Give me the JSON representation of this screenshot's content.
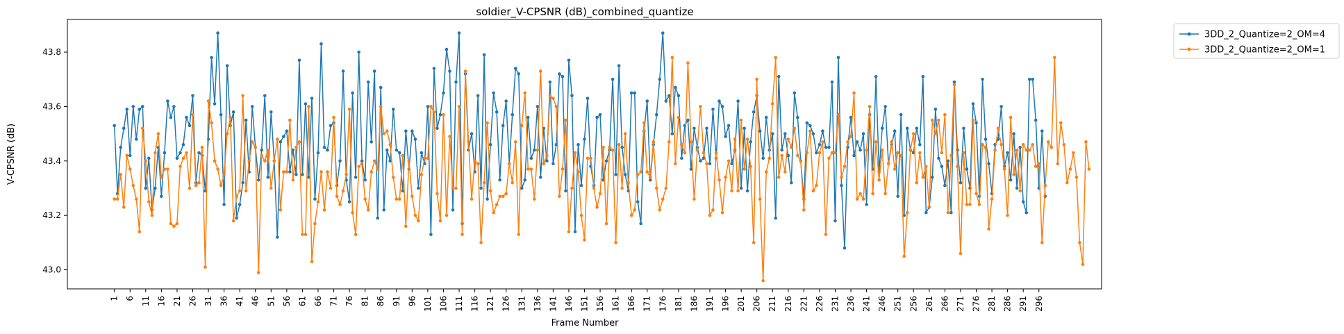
{
  "chart_data": {
    "type": "line",
    "title": "soldier_V-CPSNR (dB)_combined_quantize",
    "xlabel": "Frame Number",
    "ylabel": "V-CPSNR (dB)",
    "xlim": [
      -14,
      316
    ],
    "ylim": [
      42.93,
      43.92
    ],
    "x_start": 1,
    "x_end": 300,
    "x_ticks": [
      1,
      6,
      11,
      16,
      21,
      26,
      31,
      36,
      41,
      46,
      51,
      56,
      61,
      66,
      71,
      76,
      81,
      86,
      91,
      96,
      101,
      106,
      111,
      116,
      121,
      126,
      131,
      136,
      141,
      146,
      151,
      156,
      161,
      166,
      171,
      176,
      181,
      186,
      191,
      196,
      201,
      206,
      211,
      216,
      221,
      226,
      231,
      236,
      241,
      246,
      251,
      256,
      261,
      266,
      271,
      276,
      281,
      286,
      291,
      296
    ],
    "y_ticks": [
      43.0,
      43.2,
      43.4,
      43.6,
      43.8
    ],
    "legend": {
      "placement": "outside-top-right"
    },
    "series": [
      {
        "name": "3DD_2_Quantize=2_OM=4",
        "color": "#1f77b4",
        "values": [
          43.53,
          43.28,
          43.45,
          43.52,
          43.59,
          43.42,
          43.6,
          43.48,
          43.59,
          43.6,
          43.3,
          43.41,
          43.22,
          43.3,
          43.45,
          43.27,
          43.43,
          43.62,
          43.56,
          43.6,
          43.41,
          43.43,
          43.46,
          43.56,
          43.53,
          43.64,
          43.32,
          43.43,
          43.42,
          43.29,
          43.48,
          43.78,
          43.61,
          43.87,
          43.57,
          43.24,
          43.75,
          43.53,
          43.58,
          43.19,
          43.24,
          43.32,
          43.55,
          43.36,
          43.6,
          43.45,
          43.33,
          43.44,
          43.64,
          43.34,
          43.58,
          43.4,
          43.12,
          43.47,
          43.49,
          43.51,
          43.36,
          43.44,
          43.35,
          43.77,
          43.35,
          43.61,
          43.34,
          43.63,
          43.26,
          43.43,
          43.83,
          43.45,
          43.44,
          43.53,
          43.54,
          43.31,
          43.4,
          43.73,
          43.33,
          43.25,
          43.65,
          43.34,
          43.8,
          43.4,
          43.33,
          43.69,
          43.47,
          43.73,
          43.19,
          43.67,
          43.22,
          43.44,
          43.4,
          43.59,
          43.44,
          43.43,
          43.29,
          43.51,
          43.37,
          43.51,
          43.48,
          43.3,
          43.43,
          43.39,
          43.6,
          43.13,
          43.74,
          43.52,
          43.57,
          43.65,
          43.81,
          43.73,
          43.22,
          43.69,
          43.87,
          43.17,
          43.72,
          43.44,
          43.5,
          43.36,
          43.64,
          43.3,
          43.79,
          43.26,
          43.46,
          43.65,
          43.58,
          43.33,
          43.53,
          43.62,
          43.39,
          43.57,
          43.74,
          43.72,
          43.3,
          43.33,
          43.56,
          43.41,
          43.44,
          43.6,
          43.34,
          43.52,
          43.4,
          43.69,
          43.39,
          43.46,
          43.72,
          43.71,
          43.29,
          43.77,
          43.64,
          43.14,
          43.46,
          43.31,
          43.48,
          43.63,
          43.38,
          43.31,
          43.56,
          43.57,
          43.33,
          43.4,
          43.44,
          43.7,
          43.35,
          43.75,
          43.45,
          43.35,
          43.29,
          43.65,
          43.65,
          43.25,
          43.17,
          43.51,
          43.62,
          43.33,
          43.46,
          43.57,
          43.7,
          43.87,
          43.62,
          43.64,
          43.5,
          43.67,
          43.64,
          43.41,
          43.53,
          43.55,
          43.37,
          43.52,
          43.45,
          43.4,
          43.41,
          43.52,
          43.39,
          43.59,
          43.41,
          43.62,
          43.6,
          43.49,
          43.53,
          43.39,
          43.44,
          43.62,
          43.3,
          43.52,
          43.29,
          43.47,
          43.58,
          43.64,
          43.51,
          43.41,
          43.56,
          43.44,
          43.5,
          43.19,
          43.71,
          43.44,
          43.5,
          43.42,
          43.32,
          43.65,
          43.56,
          43.4,
          43.26,
          43.54,
          43.53,
          43.5,
          43.43,
          43.46,
          43.51,
          43.45,
          43.45,
          43.69,
          43.18,
          43.78,
          43.31,
          43.08,
          43.45,
          43.56,
          43.42,
          43.47,
          43.44,
          43.5,
          43.24,
          43.57,
          43.37,
          43.71,
          43.36,
          43.52,
          43.6,
          43.39,
          43.46,
          43.51,
          43.27,
          43.57,
          43.2,
          43.52,
          43.44,
          43.43,
          43.52,
          43.46,
          43.71,
          43.21,
          43.23,
          43.34,
          43.59,
          43.41,
          43.38,
          43.31,
          43.4,
          43.21,
          43.69,
          43.44,
          43.32,
          43.52,
          43.37,
          43.3,
          43.61,
          43.54,
          43.27,
          43.7,
          43.48,
          43.39,
          43.28,
          43.46,
          43.48,
          43.6,
          43.38,
          43.43,
          43.33,
          43.5,
          43.3,
          43.45,
          43.25,
          43.21,
          43.7,
          43.7,
          43.55,
          43.3,
          43.51,
          43.27
        ]
      },
      {
        "name": "3DD_2_Quantize=2_OM=1",
        "color": "#ff7f0e",
        "values": [
          43.26,
          43.26,
          43.35,
          43.23,
          43.42,
          43.37,
          43.31,
          43.26,
          43.14,
          43.52,
          43.4,
          43.25,
          43.2,
          43.43,
          43.5,
          43.34,
          43.37,
          43.37,
          43.17,
          43.16,
          43.17,
          43.38,
          43.41,
          43.43,
          43.3,
          43.57,
          43.31,
          43.32,
          43.45,
          43.01,
          43.62,
          43.54,
          43.4,
          43.37,
          43.31,
          43.35,
          43.5,
          43.56,
          43.18,
          43.27,
          43.29,
          43.64,
          43.29,
          43.4,
          43.47,
          43.45,
          42.99,
          43.42,
          43.4,
          43.44,
          43.3,
          43.4,
          43.48,
          43.22,
          43.36,
          43.36,
          43.55,
          43.33,
          43.45,
          43.47,
          43.13,
          43.13,
          43.6,
          43.03,
          43.17,
          43.25,
          43.36,
          43.22,
          43.36,
          43.3,
          43.56,
          43.27,
          43.24,
          43.29,
          43.35,
          43.59,
          43.21,
          43.13,
          43.38,
          43.39,
          43.26,
          43.22,
          43.36,
          43.4,
          43.37,
          43.6,
          43.5,
          43.51,
          43.46,
          43.34,
          43.26,
          43.26,
          43.42,
          43.16,
          43.4,
          43.27,
          43.2,
          43.18,
          43.35,
          43.41,
          43.41,
          43.6,
          43.58,
          43.28,
          43.18,
          43.57,
          43.2,
          43.49,
          43.3,
          43.3,
          43.6,
          43.13,
          43.73,
          43.47,
          43.26,
          43.4,
          43.39,
          43.1,
          43.32,
          43.54,
          43.29,
          43.21,
          43.24,
          43.27,
          43.27,
          43.28,
          43.39,
          43.32,
          43.47,
          43.13,
          43.53,
          43.65,
          43.37,
          43.37,
          43.26,
          43.44,
          43.73,
          43.39,
          43.42,
          43.64,
          43.63,
          43.6,
          43.27,
          43.37,
          43.55,
          43.14,
          43.3,
          43.43,
          43.36,
          43.2,
          43.11,
          43.41,
          43.41,
          43.3,
          43.23,
          43.28,
          43.45,
          43.17,
          43.45,
          43.44,
          43.1,
          43.46,
          43.3,
          43.5,
          43.32,
          43.2,
          43.22,
          43.35,
          43.36,
          43.54,
          43.36,
          43.34,
          43.47,
          43.3,
          43.22,
          43.26,
          43.3,
          43.47,
          43.78,
          43.39,
          43.56,
          43.46,
          43.43,
          43.76,
          43.47,
          43.26,
          43.44,
          43.6,
          43.43,
          43.39,
          43.2,
          43.22,
          43.43,
          43.33,
          43.21,
          43.34,
          43.4,
          43.29,
          43.48,
          43.29,
          43.55,
          43.37,
          43.48,
          43.38,
          43.1,
          43.7,
          43.26,
          42.96,
          43.36,
          43.41,
          43.61,
          43.78,
          43.34,
          43.42,
          43.36,
          43.48,
          43.45,
          43.52,
          43.42,
          43.4,
          43.22,
          43.43,
          43.51,
          43.29,
          43.31,
          43.43,
          43.47,
          43.13,
          43.41,
          43.43,
          43.43,
          43.57,
          43.34,
          43.38,
          43.47,
          43.49,
          43.65,
          43.26,
          43.28,
          43.26,
          43.44,
          43.6,
          43.28,
          43.47,
          43.33,
          43.44,
          43.28,
          43.39,
          43.47,
          43.37,
          43.43,
          43.42,
          43.05,
          43.21,
          43.44,
          43.5,
          43.32,
          43.43,
          43.34,
          43.38,
          43.23,
          43.55,
          43.5,
          43.55,
          43.43,
          43.57,
          43.21,
          43.42,
          43.68,
          43.38,
          43.06,
          43.43,
          43.24,
          43.24,
          43.55,
          43.28,
          43.24,
          43.46,
          43.45,
          43.15,
          43.26,
          43.44,
          43.52,
          43.46,
          43.37,
          43.2,
          43.56,
          43.35,
          43.44,
          43.29,
          43.46,
          43.44,
          43.44,
          43.46,
          43.38,
          43.39,
          43.1,
          43.31,
          43.47,
          43.45,
          43.78,
          43.39,
          43.54,
          43.46,
          43.32,
          43.37,
          43.43,
          43.34,
          43.1,
          43.02,
          43.47,
          43.37
        ]
      }
    ]
  }
}
